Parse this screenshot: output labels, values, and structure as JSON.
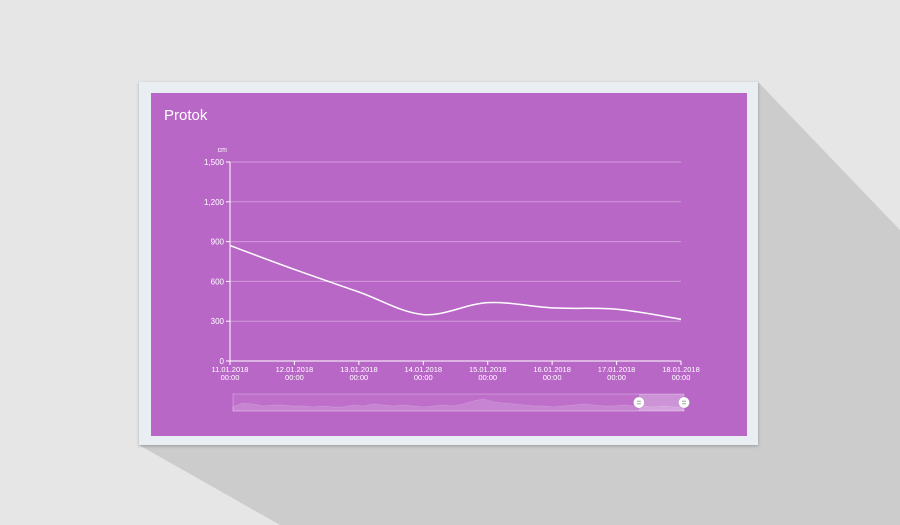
{
  "widget": {
    "title": "Protok"
  },
  "chart_data": {
    "type": "line",
    "title": "Protok",
    "ylabel": "cm",
    "xlabel": "",
    "ylim": [
      0,
      1500
    ],
    "yticks": [
      0,
      300,
      600,
      900,
      1200,
      1500
    ],
    "ytick_labels": [
      "0",
      "300",
      "600",
      "900",
      "1,200",
      "1,500"
    ],
    "xticks": [
      {
        "date": "11.01.2018",
        "time": "00:00"
      },
      {
        "date": "12.01.2018",
        "time": "00:00"
      },
      {
        "date": "13.01.2018",
        "time": "00:00"
      },
      {
        "date": "14.01.2018",
        "time": "00:00"
      },
      {
        "date": "15.01.2018",
        "time": "00:00"
      },
      {
        "date": "16.01.2018",
        "time": "00:00"
      },
      {
        "date": "17.01.2018",
        "time": "00:00"
      },
      {
        "date": "18.01.2018",
        "time": "00:00"
      }
    ],
    "series": [
      {
        "values": [
          {
            "x": "11.01.2018 00:00",
            "y": 870
          },
          {
            "x": "12.01.2018 00:00",
            "y": 690
          },
          {
            "x": "13.01.2018 00:00",
            "y": 520
          },
          {
            "x": "14.01.2018 00:00",
            "y": 350
          },
          {
            "x": "15.01.2018 00:00",
            "y": 440
          },
          {
            "x": "16.01.2018 00:00",
            "y": 400
          },
          {
            "x": "17.01.2018 00:00",
            "y": 390
          },
          {
            "x": "18.01.2018 00:00",
            "y": 315
          }
        ]
      }
    ],
    "grid": true,
    "legend": "none",
    "line_color": "#ffffff",
    "background_color": "#b967c7",
    "scrollbar": {
      "selection_start": 0.9,
      "selection_end": 1.0
    }
  },
  "colors": {
    "panel": "#b967c7",
    "card": "#e8eef2",
    "page": "#e6e6e6",
    "shadow": "#cccccc"
  }
}
